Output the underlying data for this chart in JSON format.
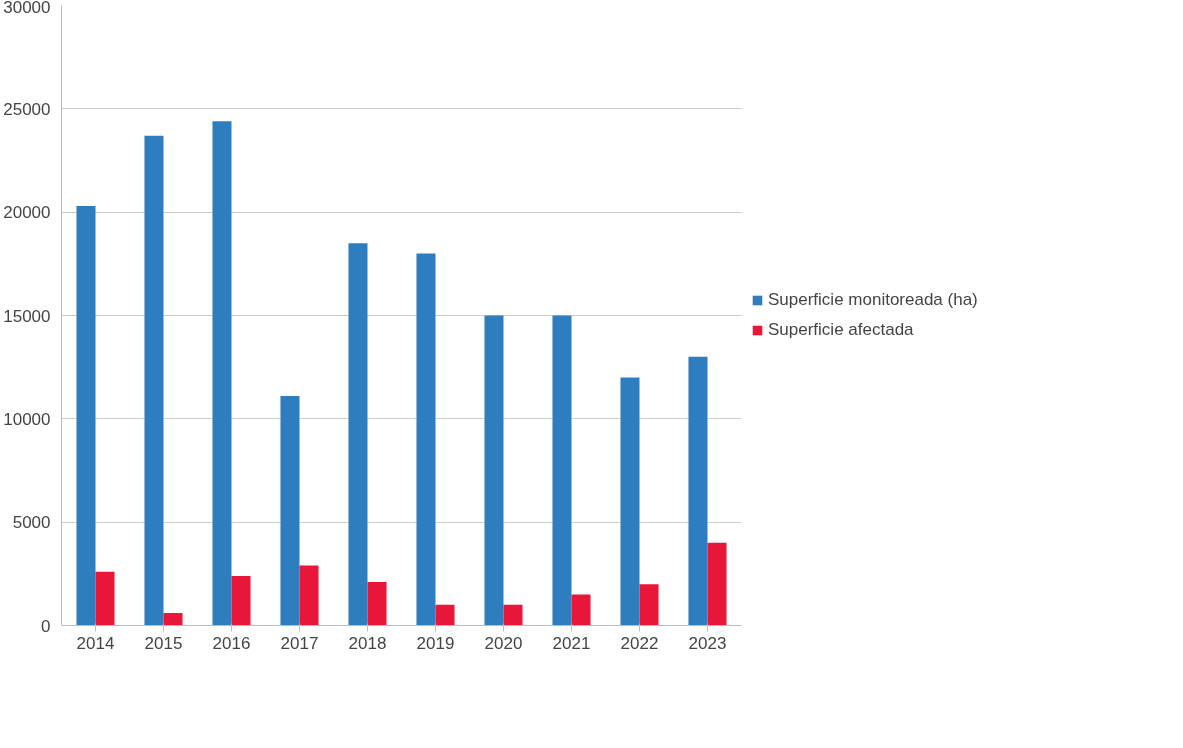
{
  "chart_data": {
    "type": "bar",
    "categories": [
      "2014",
      "2015",
      "2016",
      "2017",
      "2018",
      "2019",
      "2020",
      "2021",
      "2022",
      "2023"
    ],
    "series": [
      {
        "name": "Superficie monitoreada (ha)",
        "color": "#2e7ebf",
        "values": [
          20300,
          23700,
          24400,
          11100,
          18500,
          18000,
          15000,
          15000,
          12000,
          13000
        ]
      },
      {
        "name": "Superficie afectada",
        "color": "#e8173a",
        "values": [
          2600,
          600,
          2400,
          2900,
          2100,
          1000,
          1000,
          1500,
          2000,
          4000
        ]
      }
    ],
    "ylim": [
      0,
      30000
    ],
    "yticks": [
      0,
      5000,
      10000,
      15000,
      20000,
      25000,
      30000
    ],
    "grid": "y",
    "legend": "right"
  }
}
